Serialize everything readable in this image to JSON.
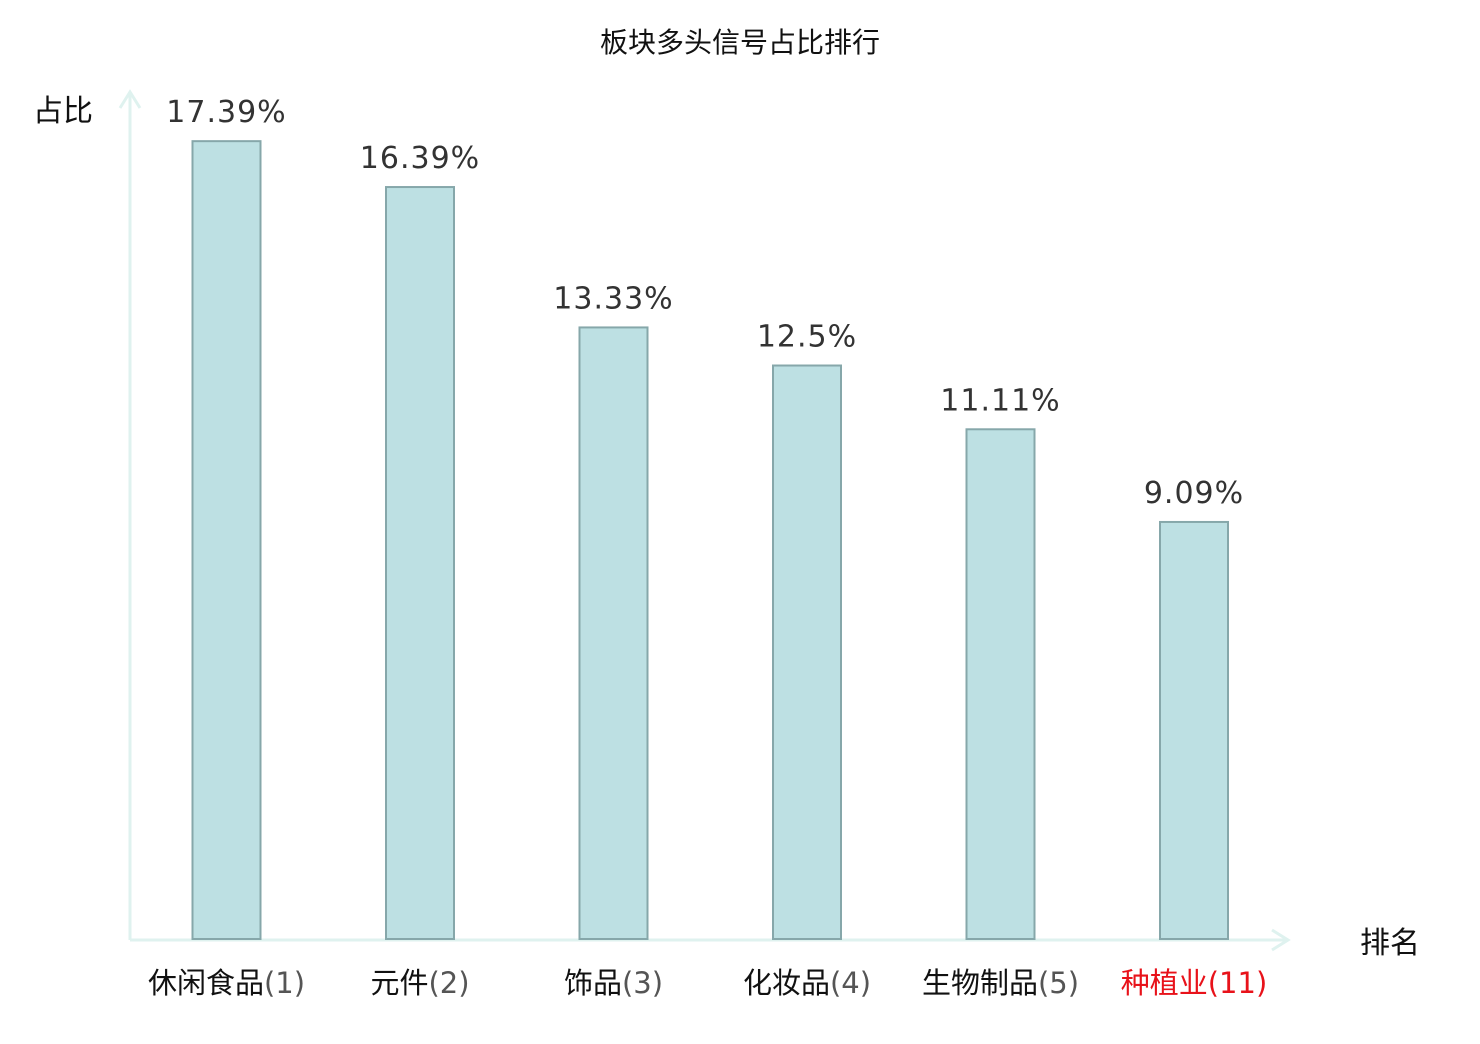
{
  "colors": {
    "bar_fill": "#bde0e3",
    "bar_stroke": "#86a7aa",
    "axis": "#dff2ef",
    "highlight": "#e8121a"
  },
  "chart_data": {
    "type": "bar",
    "title": "板块多头信号占比排行",
    "ylabel": "占比",
    "xlabel": "排名",
    "grid": false,
    "y_ticks_shown": false,
    "ylim": [
      0,
      18.2
    ],
    "categories": [
      {
        "name": "休闲食品",
        "rank": "(1)",
        "highlight": false
      },
      {
        "name": "元件",
        "rank": "(2)",
        "highlight": false
      },
      {
        "name": "饰品",
        "rank": "(3)",
        "highlight": false
      },
      {
        "name": "化妆品",
        "rank": "(4)",
        "highlight": false
      },
      {
        "name": "生物制品",
        "rank": "(5)",
        "highlight": false
      },
      {
        "name": "种植业",
        "rank": "(11)",
        "highlight": true
      }
    ],
    "values": [
      17.39,
      16.39,
      13.33,
      12.5,
      11.11,
      9.09
    ],
    "value_labels": [
      "17.39%",
      "16.39%",
      "13.33%",
      "12.5%",
      "11.11%",
      "9.09%"
    ]
  }
}
